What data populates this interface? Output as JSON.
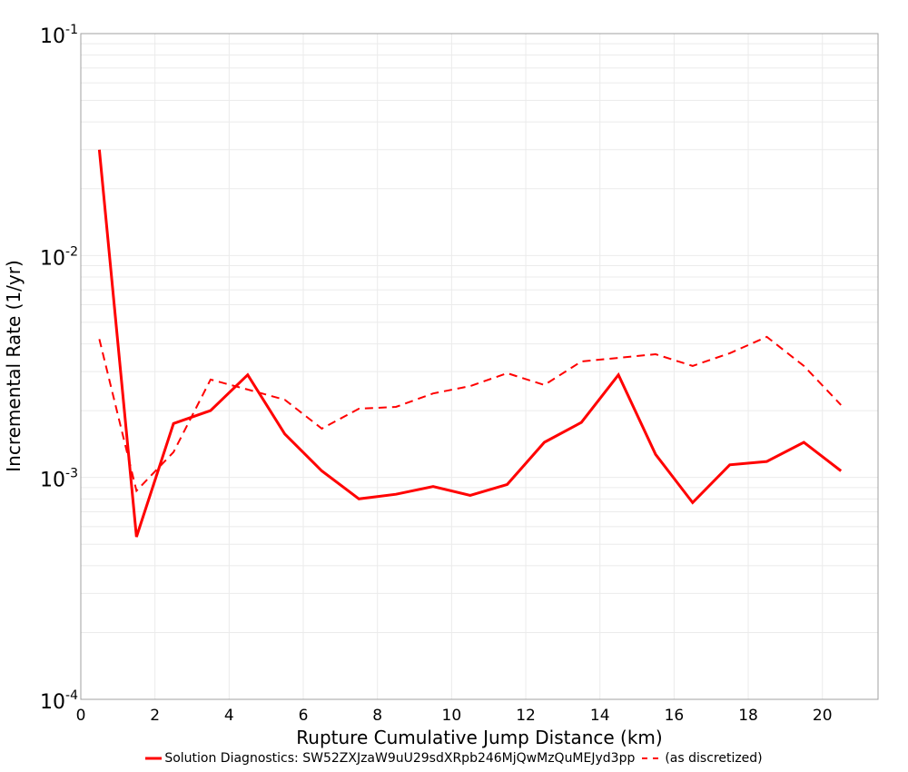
{
  "chart_data": {
    "type": "line",
    "title": "",
    "xlabel": "Rupture Cumulative Jump Distance (km)",
    "ylabel": "Incremental Rate (1/yr)",
    "xlim": [
      0,
      21.5
    ],
    "ylim": [
      0.0001,
      0.1
    ],
    "yscale": "log",
    "grid": true,
    "legend_position": "bottom",
    "x_ticks": [
      "0",
      "2",
      "4",
      "6",
      "8",
      "10",
      "12",
      "14",
      "16",
      "18",
      "20"
    ],
    "y_ticks": [
      {
        "base": "10",
        "exp": "-1",
        "value": 0.1
      },
      {
        "base": "10",
        "exp": "-2",
        "value": 0.01
      },
      {
        "base": "10",
        "exp": "-3",
        "value": 0.001
      },
      {
        "base": "10",
        "exp": "-4",
        "value": 0.0001
      }
    ],
    "x": [
      0.5,
      1.5,
      2.5,
      3.5,
      4.5,
      5.5,
      6.5,
      7.5,
      8.5,
      9.5,
      10.5,
      11.5,
      12.5,
      13.5,
      14.5,
      15.5,
      16.5,
      17.5,
      18.5,
      19.5,
      20.5
    ],
    "series": [
      {
        "name": "Solution Diagnostics: SW52ZXJzaW9uU29sdXRpb246MjQwMzQuMEJyd3pp",
        "color": "#ff0000",
        "style": "solid",
        "values": [
          0.03,
          0.00054,
          0.00175,
          0.002,
          0.0029,
          0.00157,
          0.00107,
          0.0008,
          0.00084,
          0.00091,
          0.00083,
          0.00093,
          0.00144,
          0.00177,
          0.0029,
          0.00127,
          0.00077,
          0.00114,
          0.00118,
          0.00144,
          0.00107
        ]
      },
      {
        "name": "(as discretized)",
        "color": "#ff0000",
        "style": "dashed",
        "values": [
          0.0042,
          0.00087,
          0.0013,
          0.00276,
          0.00249,
          0.00224,
          0.00166,
          0.00204,
          0.00208,
          0.00239,
          0.00258,
          0.00295,
          0.00261,
          0.00333,
          0.00346,
          0.00359,
          0.00318,
          0.00363,
          0.0043,
          0.00318,
          0.00212
        ]
      }
    ]
  },
  "legend": {
    "items": [
      {
        "label": "Solution Diagnostics: SW52ZXJzaW9uU29sdXRpb246MjQwMzQuMEJyd3pp"
      },
      {
        "label": "(as discretized)"
      }
    ]
  },
  "colors": {
    "series": "#ff0000",
    "grid": "#ebebeb",
    "axis": "#a0a0a0"
  }
}
